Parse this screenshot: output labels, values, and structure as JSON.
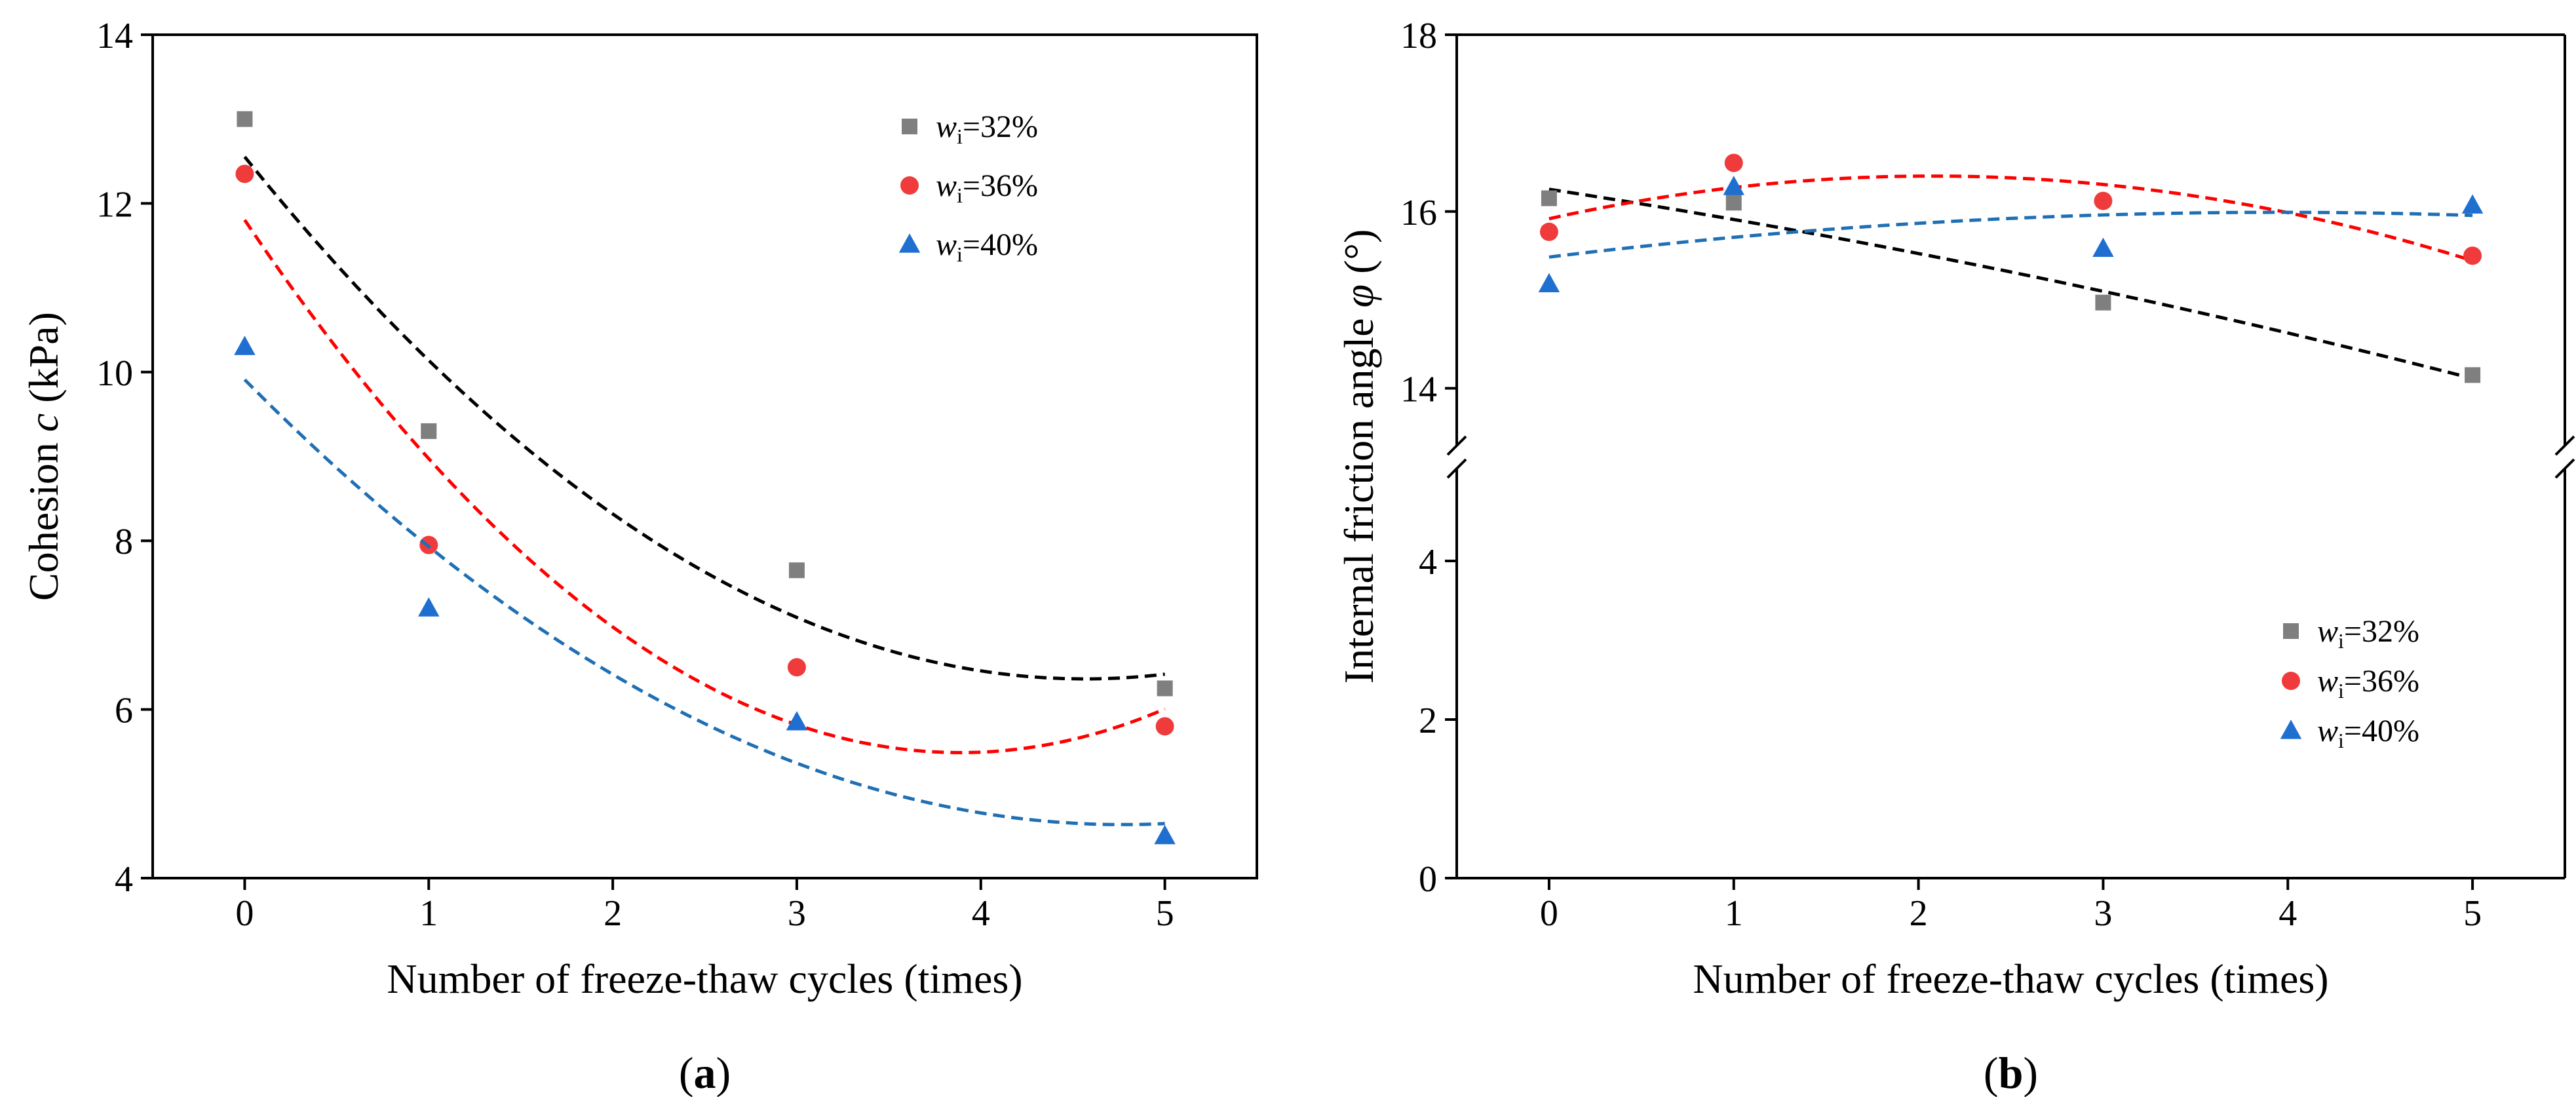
{
  "chart_data": [
    {
      "type": "scatter",
      "panel": "a",
      "panel_label": "a",
      "xlabel": "Number of freeze-thaw cycles (times)",
      "ylabel_prefix": "Cohesion ",
      "ylabel_var": "c",
      "ylabel_suffix": " (kPa)",
      "xlim": [
        -0.5,
        5.5
      ],
      "ylim": [
        4,
        14
      ],
      "xticks": [
        0,
        1,
        2,
        3,
        4,
        5
      ],
      "yticks": [
        4,
        6,
        8,
        10,
        12,
        14
      ],
      "x": [
        0,
        1,
        3,
        5
      ],
      "legend_position": "top-right",
      "series": [
        {
          "name": "wi=32%",
          "var": "w",
          "sub": "i",
          "text": "=32%",
          "color": "#7f7f7f",
          "fit_color": "#000000",
          "marker": "square",
          "values": [
            13.0,
            9.3,
            7.65,
            6.25
          ],
          "fit": [
            12.55,
            6.4
          ]
        },
        {
          "name": "wi=36%",
          "var": "w",
          "sub": "i",
          "text": "=36%",
          "color": "#ef3b3b",
          "fit_color": "#ff0000",
          "marker": "circle",
          "values": [
            12.35,
            7.95,
            6.5,
            5.8
          ],
          "fit": [
            11.85,
            6.0
          ]
        },
        {
          "name": "wi=40%",
          "var": "w",
          "sub": "i",
          "text": "=40%",
          "color": "#1f6fd1",
          "fit_color": "#1f6fb4",
          "marker": "triangle",
          "values": [
            10.3,
            7.2,
            5.85,
            4.5
          ],
          "fit": [
            9.95,
            4.62
          ]
        }
      ]
    },
    {
      "type": "scatter",
      "panel": "b",
      "panel_label": "b",
      "xlabel": "Number of freeze-thaw cycles (times)",
      "ylabel_prefix": "Internal friction angle ",
      "ylabel_var": "φ",
      "ylabel_suffix": " (°)",
      "xlim": [
        -0.5,
        5.5
      ],
      "ylim_lower": [
        0,
        5
      ],
      "ylim_upper": [
        13.5,
        18
      ],
      "xticks": [
        0,
        1,
        2,
        3,
        4,
        5
      ],
      "yticks_lower": [
        0,
        2,
        4
      ],
      "yticks_upper": [
        14,
        16,
        18
      ],
      "axis_break": true,
      "x": [
        0,
        1,
        3,
        5
      ],
      "legend_position": "bottom-right",
      "series": [
        {
          "name": "wi=32%",
          "var": "w",
          "sub": "i",
          "text": "=32%",
          "color": "#7f7f7f",
          "fit_color": "#000000",
          "marker": "square",
          "values": [
            16.15,
            16.1,
            14.97,
            14.15
          ],
          "fit": [
            16.28,
            14.12
          ]
        },
        {
          "name": "wi=36%",
          "var": "w",
          "sub": "i",
          "text": "=36%",
          "color": "#ef3b3b",
          "fit_color": "#ff0000",
          "marker": "circle",
          "values": [
            15.77,
            16.55,
            16.12,
            15.5
          ],
          "fit": [
            15.9,
            15.52
          ]
        },
        {
          "name": "wi=40%",
          "var": "w",
          "sub": "i",
          "text": "=40%",
          "color": "#1f6fd1",
          "fit_color": "#1f6fb4",
          "marker": "triangle",
          "values": [
            15.18,
            16.28,
            15.58,
            16.07
          ],
          "fit": [
            15.48,
            15.96
          ]
        }
      ]
    }
  ]
}
